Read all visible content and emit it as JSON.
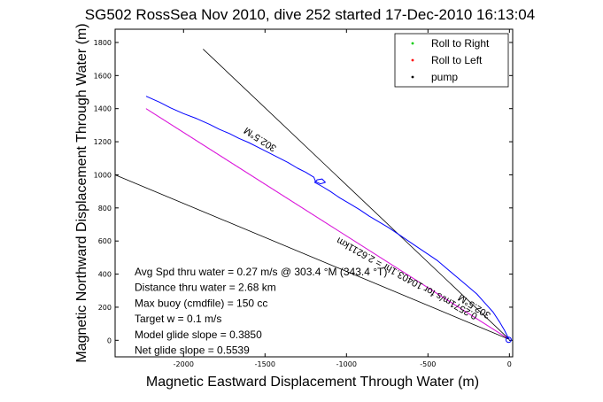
{
  "chart_data": {
    "type": "line",
    "title": "SG502 RossSea Nov 2010, dive 252 started 17-Dec-2010 16:13:04",
    "xlabel": "Magnetic Eastward Displacement Through Water (m)",
    "ylabel": "Magnetic Northward Displacement Through Water (m)",
    "xlim": [
      -2420,
      20
    ],
    "ylim": [
      -100,
      1880
    ],
    "xticks": [
      -2000,
      -1500,
      -1000,
      -500,
      0
    ],
    "yticks": [
      0,
      200,
      400,
      600,
      800,
      1000,
      1200,
      1400,
      1600,
      1800
    ],
    "grid": false,
    "legend_position": "top-right",
    "legend": [
      {
        "label": "Roll to Right",
        "color": "#00cc00"
      },
      {
        "label": "Roll to Left",
        "color": "#ff0000"
      },
      {
        "label": "pump",
        "color": "#000000"
      }
    ],
    "series": [
      {
        "color": "#0000ff",
        "x": [
          -2230,
          -2150,
          -2080,
          -2000,
          -1920,
          -1840,
          -1780,
          -1720,
          -1660,
          -1600,
          -1540,
          -1480,
          -1420,
          -1360,
          -1300,
          -1250,
          -1200,
          -1190,
          -1160,
          -1130,
          -1150,
          -1180,
          -1195,
          -1150,
          -1100,
          -1040,
          -980,
          -920,
          -860,
          -800,
          -740,
          -680,
          -620,
          -560,
          -500,
          -440,
          -380,
          -320,
          -260,
          -200,
          -150,
          -100,
          -60,
          -30,
          -10,
          0
        ],
        "y": [
          1475,
          1440,
          1405,
          1370,
          1340,
          1305,
          1275,
          1250,
          1220,
          1195,
          1165,
          1135,
          1105,
          1075,
          1040,
          1015,
          985,
          960,
          945,
          955,
          975,
          970,
          955,
          930,
          900,
          860,
          825,
          790,
          750,
          715,
          680,
          640,
          600,
          560,
          520,
          480,
          430,
          380,
          330,
          280,
          225,
          170,
          110,
          60,
          20,
          5
        ]
      }
    ],
    "reference_lines": [
      {
        "x": [
          -2230,
          0
        ],
        "y": [
          1400,
          5
        ],
        "color": "#000000",
        "kind": "straight"
      },
      {
        "x": [
          -2230,
          0
        ],
        "y": [
          1400,
          5
        ],
        "color": "#ff00ff",
        "kind": "straight"
      },
      {
        "x": [
          -1880,
          0
        ],
        "y": [
          1760,
          5
        ],
        "color": "#000000",
        "kind": "straight"
      },
      {
        "x": [
          -2420,
          0
        ],
        "y": [
          1000,
          5
        ],
        "color": "#000000",
        "kind": "straight"
      }
    ],
    "end_marker": {
      "x": -5,
      "y": 3
    },
    "track_labels": [
      {
        "text": "302.5°M",
        "x": -1520,
        "y": 1230,
        "angle": 213
      },
      {
        "text": "302.5°M",
        "x": -205,
        "y": 220,
        "angle": 213
      },
      {
        "text": "0.2571m/s for 10403.1hr = 2.6211km",
        "x": -620,
        "y": 390,
        "angle": 209
      }
    ],
    "annotations": [
      "Avg Spd thru water = 0.27 m/s @ 303.4 °M (343.4 °T)",
      "Distance thru water = 2.68 km",
      "Max buoy (cmdfile) = 150 cc",
      "Target w = 0.1 m/s",
      "Model glide slope = 0.3850",
      "Net glide slope = 0.5539"
    ]
  }
}
